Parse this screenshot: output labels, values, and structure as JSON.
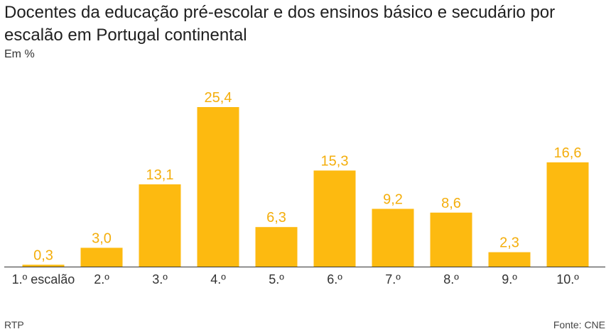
{
  "header": {
    "title": "Docentes da educação pré-escolar e dos ensinos básico e secudário por escalão em Portugal continental",
    "subtitle": "Em %"
  },
  "footer": {
    "source_left": "RTP",
    "source_right": "Fonte: CNE"
  },
  "colors": {
    "bar": "#FDBA10",
    "value_label": "#F4AE0C",
    "tick_label": "#333333",
    "baseline": "#333333"
  },
  "chart_data": {
    "type": "bar",
    "title": "Docentes da educação pré-escolar e dos ensinos básico e secudário por escalão em Portugal continental",
    "subtitle": "Em %",
    "categories": [
      "1.º escalão",
      "2.º",
      "3.º",
      "4.º",
      "5.º",
      "6.º",
      "7.º",
      "8.º",
      "9.º",
      "10.º"
    ],
    "values": [
      0.3,
      3.0,
      13.1,
      25.4,
      6.3,
      15.3,
      9.2,
      8.6,
      2.3,
      16.6
    ],
    "value_labels": [
      "0,3",
      "3,0",
      "13,1",
      "25,4",
      "6,3",
      "15,3",
      "9,2",
      "8,6",
      "2,3",
      "16,6"
    ],
    "ylim": [
      0,
      25.4
    ],
    "grid": false,
    "legend": "none"
  }
}
